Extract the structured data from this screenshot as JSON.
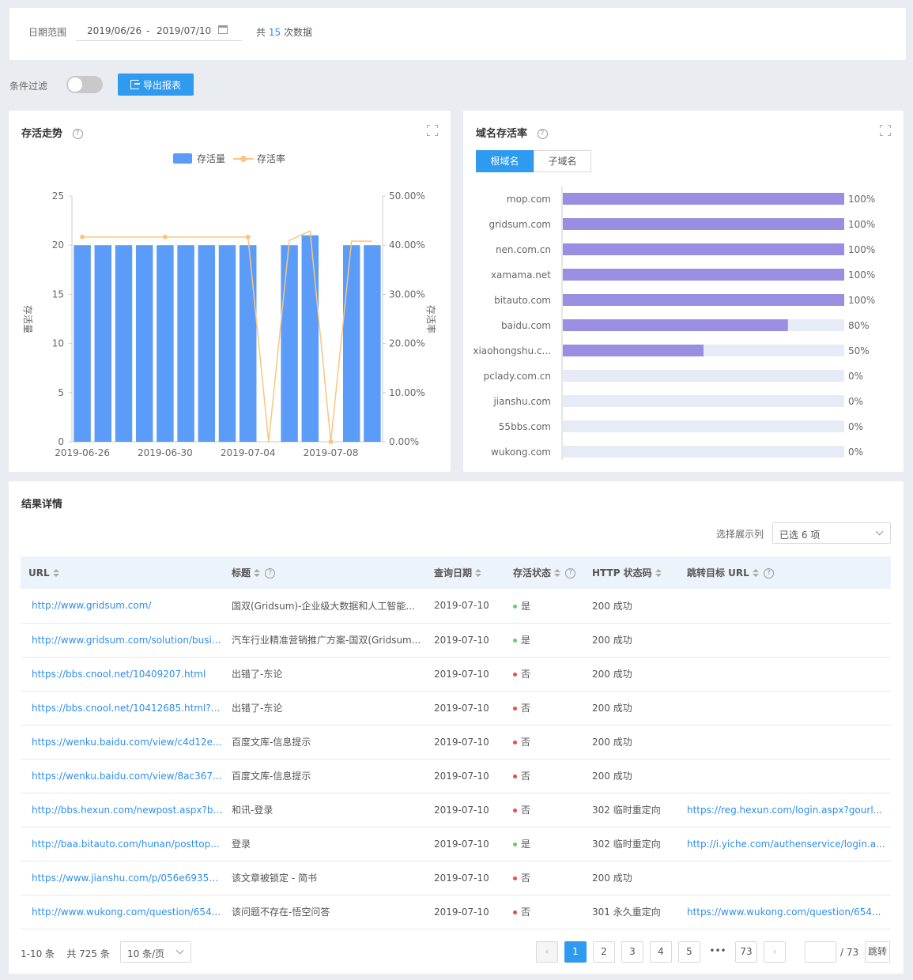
{
  "date_filter": {
    "label": "日期范围",
    "start": "2019/06/26",
    "sep": "-",
    "end": "2019/07/10",
    "count_prefix": "共",
    "count": "15",
    "count_suffix": "次数据"
  },
  "filter": {
    "label": "条件过滤",
    "export_label": "导出报表",
    "toggle_on": false
  },
  "trend": {
    "title": "存活走势",
    "chart_data": {
      "type": "bar",
      "title": "存活走势",
      "legend": [
        "存活量",
        "存活率"
      ],
      "legend_position": "top-center",
      "x": [
        "2019-06-26",
        "2019-06-27",
        "2019-06-28",
        "2019-06-29",
        "2019-06-30",
        "2019-07-01",
        "2019-07-02",
        "2019-07-03",
        "2019-07-04",
        "2019-07-05",
        "2019-07-06",
        "2019-07-07",
        "2019-07-08",
        "2019-07-09",
        "2019-07-10"
      ],
      "x_tick_labels": [
        "2019-06-26",
        "2019-06-30",
        "2019-07-04",
        "2019-07-08"
      ],
      "series": [
        {
          "name": "存活量",
          "type": "bar",
          "axis": "left",
          "values": [
            20,
            20,
            20,
            20,
            20,
            20,
            20,
            20,
            20,
            0,
            20,
            21,
            0,
            20,
            20
          ]
        },
        {
          "name": "存活率",
          "type": "line",
          "axis": "right",
          "values": [
            41.67,
            41.67,
            41.67,
            41.67,
            41.67,
            41.67,
            41.67,
            41.67,
            41.67,
            0,
            41.0,
            42.86,
            0,
            40.82,
            40.82
          ]
        }
      ],
      "ylabel": "存活量",
      "ylabel_right": "存活率",
      "ylim": [
        0,
        25
      ],
      "ylim_right": [
        0,
        50
      ],
      "y_ticks": [
        "0",
        "5",
        "10",
        "15",
        "20",
        "25"
      ],
      "y_right_ticks": [
        "0.00%",
        "10.00%",
        "20.00%",
        "30.00%",
        "40.00%",
        "50.00%"
      ],
      "colors": {
        "bar": "#5b9cf8",
        "line": "#fbc57f"
      }
    }
  },
  "domain": {
    "title": "域名存活率",
    "tabs": [
      {
        "label": "根域名",
        "active": true
      },
      {
        "label": "子域名",
        "active": false
      }
    ],
    "chart_data": {
      "type": "bar",
      "orientation": "horizontal",
      "categories": [
        "mop.com",
        "gridsum.com",
        "nen.com.cn",
        "xamama.net",
        "bitauto.com",
        "baidu.com",
        "xiaohongshu.c...",
        "pclady.com.cn",
        "jianshu.com",
        "55bbs.com",
        "wukong.com"
      ],
      "values": [
        100,
        100,
        100,
        100,
        100,
        80,
        50,
        0,
        0,
        0,
        0
      ],
      "value_labels": [
        "100%",
        "100%",
        "100%",
        "100%",
        "100%",
        "80%",
        "50%",
        "0%",
        "0%",
        "0%",
        "0%"
      ],
      "xlim": [
        0,
        100
      ],
      "colors": {
        "bar": "#9a8ee2",
        "track": "#e7ebf6"
      }
    }
  },
  "results": {
    "title": "结果详情",
    "column_select_label": "选择展示列",
    "column_select_value": "已选 6 项",
    "columns": [
      "URL",
      "标题",
      "查询日期",
      "存活状态",
      "HTTP 状态码",
      "跳转目标 URL"
    ],
    "rows": [
      {
        "url": "http://www.gridsum.com/",
        "title": "国双(Gridsum)-企业级大数据和人工智能...",
        "date": "2019-07-10",
        "alive": "是",
        "alive_color": "#5fcf73",
        "status": "200 成功",
        "redirect": ""
      },
      {
        "url": "http://www.gridsum.com/solution/busi...",
        "title": "汽车行业精准营销推广方案-国双(Gridsum...",
        "date": "2019-07-10",
        "alive": "是",
        "alive_color": "#5fcf73",
        "status": "200 成功",
        "redirect": ""
      },
      {
        "url": "https://bbs.cnool.net/10409207.html",
        "title": "出错了-东论",
        "date": "2019-07-10",
        "alive": "否",
        "alive_color": "#f04848",
        "status": "200 成功",
        "redirect": ""
      },
      {
        "url": "https://bbs.cnool.net/10412685.html?p...",
        "title": "出错了-东论",
        "date": "2019-07-10",
        "alive": "否",
        "alive_color": "#f04848",
        "status": "200 成功",
        "redirect": ""
      },
      {
        "url": "https://wenku.baidu.com/view/c4d12e...",
        "title": "百度文库-信息提示",
        "date": "2019-07-10",
        "alive": "否",
        "alive_color": "#f04848",
        "status": "200 成功",
        "redirect": ""
      },
      {
        "url": "https://wenku.baidu.com/view/8ac367...",
        "title": "百度文库-信息提示",
        "date": "2019-07-10",
        "alive": "否",
        "alive_color": "#f04848",
        "status": "200 成功",
        "redirect": ""
      },
      {
        "url": "http://bbs.hexun.com/newpost.aspx?bi...",
        "title": "和讯-登录",
        "date": "2019-07-10",
        "alive": "否",
        "alive_color": "#f04848",
        "status": "302 临时重定向",
        "redirect": "https://reg.hexun.com/login.aspx?gourl..."
      },
      {
        "url": "http://baa.bitauto.com/hunan/posttop...",
        "title": "登录",
        "date": "2019-07-10",
        "alive": "是",
        "alive_color": "#5fcf73",
        "status": "302 临时重定向",
        "redirect": "http://i.yiche.com/authenservice/login.a..."
      },
      {
        "url": "https://www.jianshu.com/p/056e6935a...",
        "title": "该文章被锁定 - 简书",
        "date": "2019-07-10",
        "alive": "否",
        "alive_color": "#f04848",
        "status": "200 成功",
        "redirect": ""
      },
      {
        "url": "http://www.wukong.com/question/654...",
        "title": "该问题不存在-悟空问答",
        "date": "2019-07-10",
        "alive": "否",
        "alive_color": "#f04848",
        "status": "301 永久重定向",
        "redirect": "https://www.wukong.com/question/654..."
      }
    ]
  },
  "pagination": {
    "range": "1-10 条",
    "total": "共 725 条",
    "page_size": "10 条/页",
    "pages": [
      "1",
      "2",
      "3",
      "4",
      "5"
    ],
    "ellipsis": "•••",
    "last": "73",
    "current": "1",
    "total_pages": "/ 73",
    "jump_label": "跳转"
  }
}
